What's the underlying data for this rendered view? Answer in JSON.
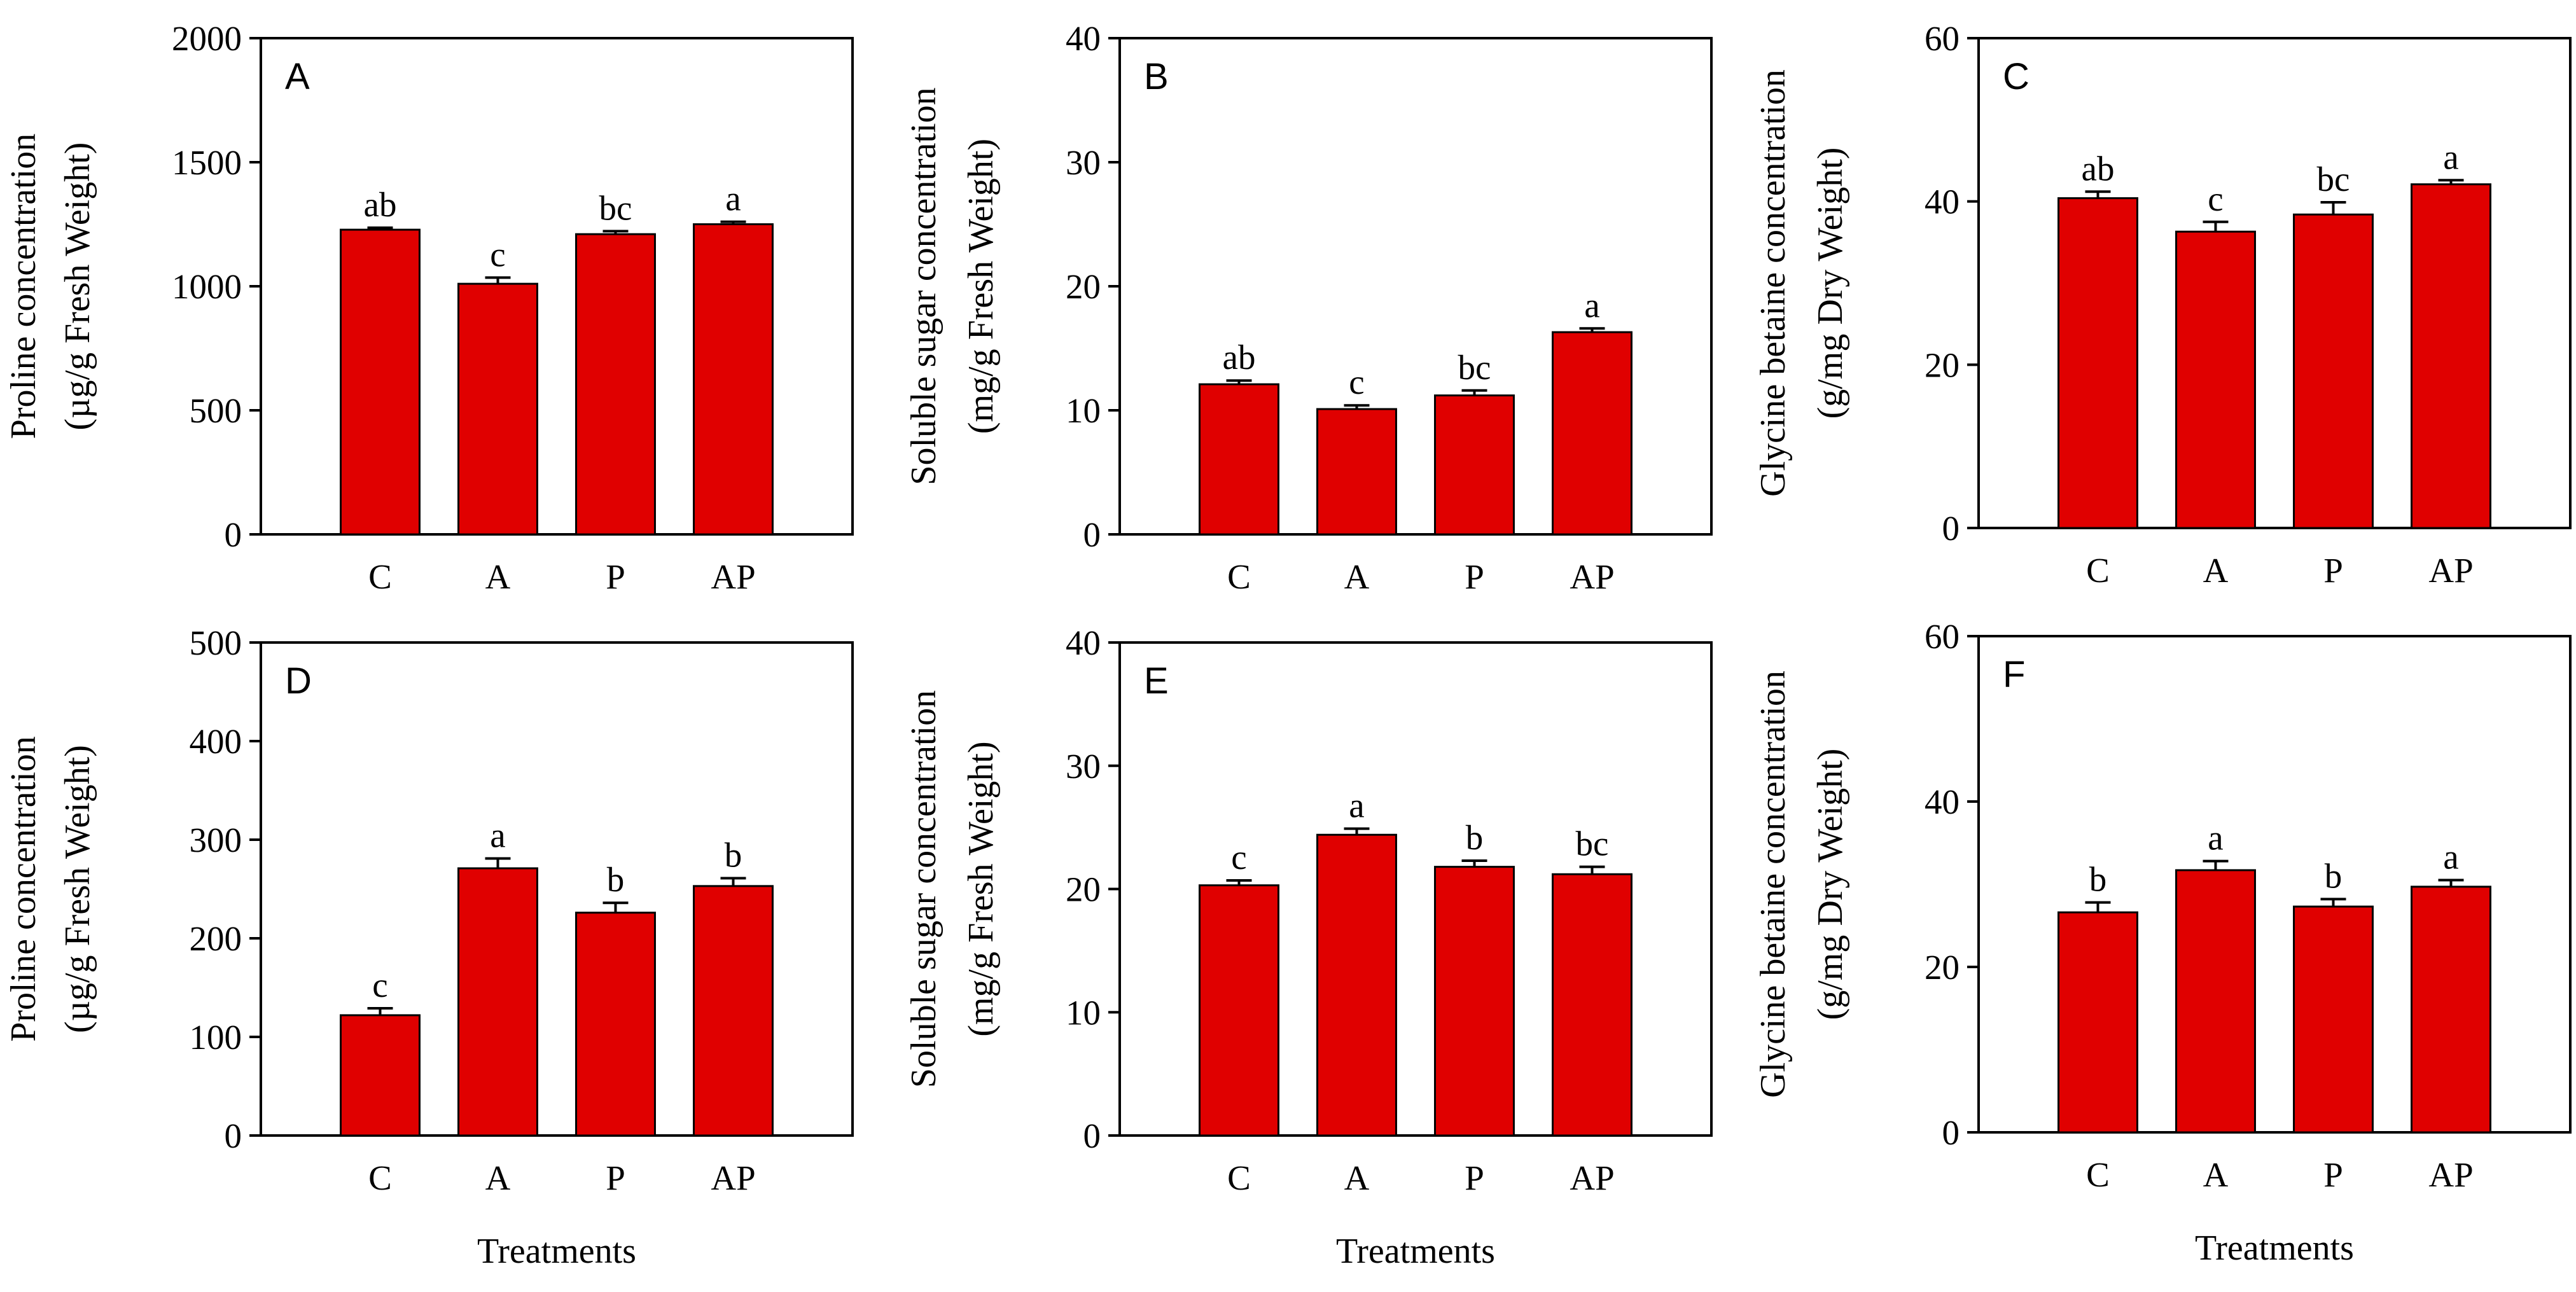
{
  "colors": {
    "bar_fill": "#e00000",
    "axis": "#000000",
    "background": "#ffffff"
  },
  "chart_data": [
    {
      "type": "bar",
      "panel": "A",
      "categories": [
        "C",
        "A",
        "P",
        "AP"
      ],
      "values": [
        1228,
        1010,
        1210,
        1250
      ],
      "errors": [
        8,
        25,
        12,
        10
      ],
      "significance": [
        "ab",
        "c",
        "bc",
        "a"
      ],
      "ylim": [
        0,
        2000
      ],
      "yticks": [
        "0",
        "500",
        "1000",
        "1500",
        "2000"
      ],
      "ylabel_line1": "Proline concentration",
      "ylabel_line2": "(µg/g Fresh Weight)",
      "xlabel": ""
    },
    {
      "type": "bar",
      "panel": "B",
      "categories": [
        "C",
        "A",
        "P",
        "AP"
      ],
      "values": [
        12.1,
        10.1,
        11.2,
        16.3
      ],
      "errors": [
        0.3,
        0.3,
        0.4,
        0.3
      ],
      "significance": [
        "ab",
        "c",
        "bc",
        "a"
      ],
      "ylim": [
        0,
        40
      ],
      "yticks": [
        "0",
        "10",
        "20",
        "30",
        "40"
      ],
      "ylabel_line1": "Soluble sugar concentration",
      "ylabel_line2": "(mg/g Fresh Weight)",
      "xlabel": ""
    },
    {
      "type": "bar",
      "panel": "C",
      "categories": [
        "C",
        "A",
        "P",
        "AP"
      ],
      "values": [
        40.4,
        36.3,
        38.4,
        42.1
      ],
      "errors": [
        0.8,
        1.2,
        1.5,
        0.5
      ],
      "significance": [
        "ab",
        "c",
        "bc",
        "a"
      ],
      "ylim": [
        0,
        60
      ],
      "yticks": [
        "0",
        "20",
        "40",
        "60"
      ],
      "ylabel_line1": "Glycine betaine concentration",
      "ylabel_line2": "(g/mg Dry Weight)",
      "xlabel": ""
    },
    {
      "type": "bar",
      "panel": "D",
      "categories": [
        "C",
        "A",
        "P",
        "AP"
      ],
      "values": [
        122,
        271,
        226,
        253
      ],
      "errors": [
        7,
        10,
        10,
        8
      ],
      "significance": [
        "c",
        "a",
        "b",
        "b"
      ],
      "ylim": [
        0,
        500
      ],
      "yticks": [
        "0",
        "100",
        "200",
        "300",
        "400",
        "500"
      ],
      "ylabel_line1": "Proline concentration",
      "ylabel_line2": "(µg/g Fresh Weight)",
      "xlabel": "Treatments"
    },
    {
      "type": "bar",
      "panel": "E",
      "categories": [
        "C",
        "A",
        "P",
        "AP"
      ],
      "values": [
        20.3,
        24.4,
        21.8,
        21.2
      ],
      "errors": [
        0.4,
        0.5,
        0.5,
        0.6
      ],
      "significance": [
        "c",
        "a",
        "b",
        "bc"
      ],
      "ylim": [
        0,
        40
      ],
      "yticks": [
        "0",
        "10",
        "20",
        "30",
        "40"
      ],
      "ylabel_line1": "Soluble sugar concentration",
      "ylabel_line2": "(mg/g Fresh Weight)",
      "xlabel": "Treatments"
    },
    {
      "type": "bar",
      "panel": "F",
      "categories": [
        "C",
        "A",
        "P",
        "AP"
      ],
      "values": [
        26.6,
        31.7,
        27.3,
        29.7
      ],
      "errors": [
        1.2,
        1.1,
        0.9,
        0.8
      ],
      "significance": [
        "b",
        "a",
        "b",
        "a"
      ],
      "ylim": [
        0,
        60
      ],
      "yticks": [
        "0",
        "20",
        "40",
        "60"
      ],
      "ylabel_line1": "Glycine betaine concentration",
      "ylabel_line2": "(g/mg Dry Weight)",
      "xlabel": "Treatments"
    }
  ]
}
